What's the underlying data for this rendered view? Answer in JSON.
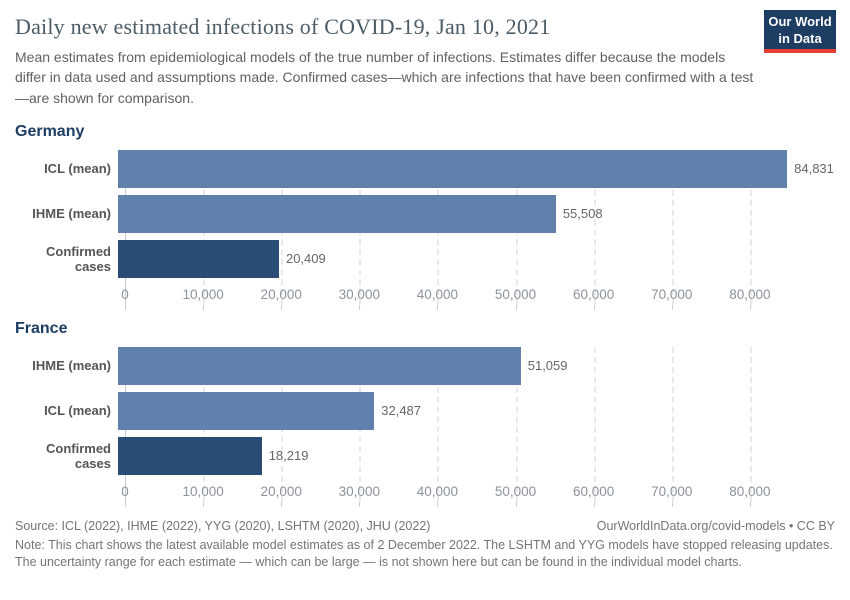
{
  "header": {
    "title": "Daily new estimated infections of COVID-19, Jan 10, 2021",
    "subtitle": "Mean estimates from epidemiological models of the true number of infections. Estimates differ because the models differ in data used and assumptions made. Confirmed cases—which are infections that have been confirmed with a test—are shown for comparison.",
    "logo": {
      "line1": "Our World",
      "line2": "in Data"
    }
  },
  "colors": {
    "model_bar": "#6181ac",
    "confirmed_bar": "#2a4d76",
    "section_heading": "#1d3d63",
    "logo_background": "#1d3d63",
    "logo_underline": "#e63e36"
  },
  "chart_data": [
    {
      "type": "bar",
      "title": "Germany",
      "categories": [
        "ICL (mean)",
        "IHME (mean)",
        "Confirmed cases"
      ],
      "values": [
        84831,
        55508,
        20409
      ],
      "value_labels": [
        "84,831",
        "55,508",
        "20,409"
      ],
      "bar_colors": [
        "#6181ac",
        "#6181ac",
        "#2a4d76"
      ],
      "xlim": [
        0,
        90900
      ],
      "xticks": [
        0,
        10000,
        20000,
        30000,
        40000,
        50000,
        60000,
        70000,
        80000
      ],
      "xtick_labels": [
        "0",
        "10,000",
        "20,000",
        "30,000",
        "40,000",
        "50,000",
        "60,000",
        "70,000",
        "80,000"
      ],
      "grid": true,
      "orientation": "horizontal"
    },
    {
      "type": "bar",
      "title": "France",
      "categories": [
        "IHME (mean)",
        "ICL (mean)",
        "Confirmed cases"
      ],
      "values": [
        51059,
        32487,
        18219
      ],
      "value_labels": [
        "51,059",
        "32,487",
        "18,219"
      ],
      "bar_colors": [
        "#6181ac",
        "#6181ac",
        "#2a4d76"
      ],
      "xlim": [
        0,
        90900
      ],
      "xticks": [
        0,
        10000,
        20000,
        30000,
        40000,
        50000,
        60000,
        70000,
        80000
      ],
      "xtick_labels": [
        "0",
        "10,000",
        "20,000",
        "30,000",
        "40,000",
        "50,000",
        "60,000",
        "70,000",
        "80,000"
      ],
      "grid": true,
      "orientation": "horizontal"
    }
  ],
  "footer": {
    "source": "Source: ICL (2022), IHME (2022), YYG (2020), LSHTM (2020), JHU (2022)",
    "attribution": "OurWorldInData.org/covid-models • CC BY",
    "note": "Note: This chart shows the latest available model estimates as of 2 December 2022. The LSHTM and YYG models have stopped releasing updates. The uncertainty range for each estimate — which can be large — is not shown here but can be found in the individual model charts."
  }
}
